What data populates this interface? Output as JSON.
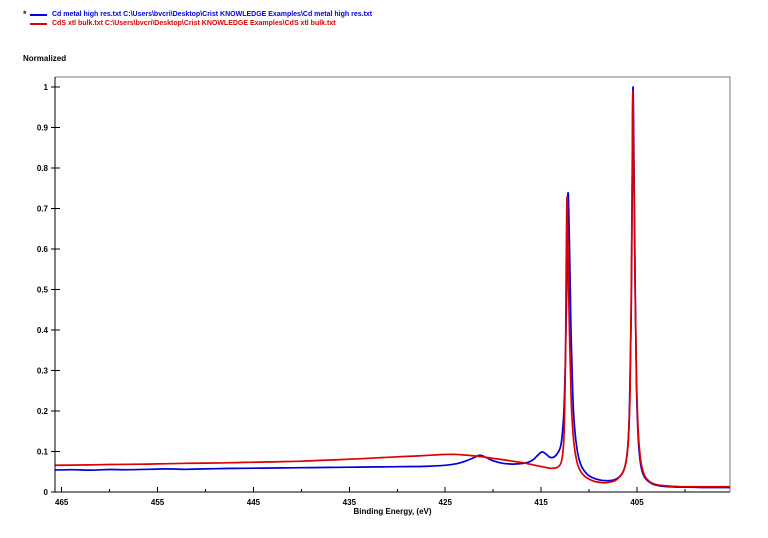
{
  "page": {
    "background": "#ffffff"
  },
  "legend": {
    "active_marker": "*",
    "series": [
      {
        "label": "Cd metal high res.txt C:\\Users\\bvcri\\Desktop\\Crist KNOWLEDGE Examples\\Cd metal high res.txt"
      },
      {
        "label": "CdS xtl bulk.txt C:\\Users\\bvcri\\Desktop\\Crist KNOWLEDGE Examples\\CdS xtl bulk.txt"
      }
    ]
  },
  "chart_data": {
    "type": "line",
    "title": "",
    "xlabel": "Binding Energy, (eV)",
    "ylabel": "Normalized",
    "frame_color": "#777777",
    "axis_color": "#000000",
    "legend_position": "top-left-above-plot",
    "grid": false,
    "x_axis": {
      "min": 395.3,
      "max": 465.7,
      "reversed": true,
      "major_ticks": [
        465,
        455,
        445,
        435,
        425,
        415,
        405
      ],
      "minor_ticks": [
        460,
        450,
        440,
        430,
        420,
        410,
        400
      ]
    },
    "y_axis": {
      "min": 0,
      "max": 1.025,
      "tick_values": [
        0,
        0.1,
        0.2,
        0.3,
        0.4,
        0.5,
        0.6,
        0.7,
        0.8,
        0.9,
        1
      ],
      "tick_labels": [
        "0",
        "0.1",
        "0.2",
        "0.3",
        "0.4",
        "0.5",
        "0.6",
        "0.7",
        "0.8",
        "0.9",
        "1"
      ]
    },
    "series": [
      {
        "id": "cd-metal-high-res",
        "name": "Cd metal high res.txt",
        "legend_label": "Cd metal high res.txt C:\\Users\\bvcri\\Desktop\\Crist KNOWLEDGE Examples\\Cd metal high res.txt",
        "color": "#0000dd",
        "points": [
          [
            466,
            0.054
          ],
          [
            464,
            0.055
          ],
          [
            462,
            0.054
          ],
          [
            460,
            0.0555
          ],
          [
            458,
            0.055
          ],
          [
            456,
            0.056
          ],
          [
            454,
            0.057
          ],
          [
            452,
            0.056
          ],
          [
            450,
            0.057
          ],
          [
            448,
            0.058
          ],
          [
            446,
            0.0585
          ],
          [
            444,
            0.059
          ],
          [
            442,
            0.0595
          ],
          [
            440,
            0.06
          ],
          [
            438,
            0.0605
          ],
          [
            436,
            0.061
          ],
          [
            434,
            0.0615
          ],
          [
            432,
            0.062
          ],
          [
            430,
            0.0625
          ],
          [
            428,
            0.063
          ],
          [
            426.5,
            0.064
          ],
          [
            425,
            0.066
          ],
          [
            423.8,
            0.07
          ],
          [
            422.8,
            0.077
          ],
          [
            422,
            0.085
          ],
          [
            421.4,
            0.091
          ],
          [
            420.8,
            0.086
          ],
          [
            420,
            0.077
          ],
          [
            419,
            0.071
          ],
          [
            418,
            0.069
          ],
          [
            417.2,
            0.07
          ],
          [
            416.4,
            0.073
          ],
          [
            415.8,
            0.08
          ],
          [
            415.3,
            0.092
          ],
          [
            414.9,
            0.099
          ],
          [
            414.5,
            0.094
          ],
          [
            414.1,
            0.086
          ],
          [
            413.7,
            0.086
          ],
          [
            413.3,
            0.095
          ],
          [
            413,
            0.11
          ],
          [
            412.8,
            0.14
          ],
          [
            412.6,
            0.21
          ],
          [
            412.45,
            0.35
          ],
          [
            412.3,
            0.55
          ],
          [
            412.2,
            0.738
          ],
          [
            412.05,
            0.62
          ],
          [
            411.9,
            0.42
          ],
          [
            411.7,
            0.24
          ],
          [
            411.5,
            0.155
          ],
          [
            411.2,
            0.098
          ],
          [
            410.9,
            0.07
          ],
          [
            410.5,
            0.052
          ],
          [
            410,
            0.04
          ],
          [
            409.4,
            0.033
          ],
          [
            408.7,
            0.029
          ],
          [
            408,
            0.028
          ],
          [
            407.4,
            0.03
          ],
          [
            406.9,
            0.036
          ],
          [
            406.5,
            0.048
          ],
          [
            406.2,
            0.068
          ],
          [
            405.95,
            0.115
          ],
          [
            405.78,
            0.21
          ],
          [
            405.62,
            0.42
          ],
          [
            405.5,
            0.73
          ],
          [
            405.42,
            1.0
          ],
          [
            405.3,
            0.78
          ],
          [
            405.18,
            0.48
          ],
          [
            405.05,
            0.26
          ],
          [
            404.9,
            0.145
          ],
          [
            404.7,
            0.082
          ],
          [
            404.5,
            0.054
          ],
          [
            404.2,
            0.036
          ],
          [
            403.8,
            0.026
          ],
          [
            403.3,
            0.019
          ],
          [
            402.6,
            0.015
          ],
          [
            401.8,
            0.013
          ],
          [
            400.8,
            0.012
          ],
          [
            399.5,
            0.012
          ],
          [
            398,
            0.011
          ],
          [
            396.5,
            0.011
          ],
          [
            395.3,
            0.011
          ]
        ]
      },
      {
        "id": "cds-xtl-bulk",
        "name": "CdS xtl bulk.txt",
        "legend_label": "CdS xtl bulk.txt C:\\Users\\bvcri\\Desktop\\Crist KNOWLEDGE Examples\\CdS xtl bulk.txt",
        "color": "#dd0000",
        "points": [
          [
            466,
            0.066
          ],
          [
            464,
            0.0665
          ],
          [
            462,
            0.067
          ],
          [
            460,
            0.068
          ],
          [
            458,
            0.0685
          ],
          [
            456,
            0.069
          ],
          [
            454,
            0.07
          ],
          [
            452,
            0.071
          ],
          [
            450,
            0.0715
          ],
          [
            448,
            0.072
          ],
          [
            446,
            0.073
          ],
          [
            444,
            0.074
          ],
          [
            442,
            0.075
          ],
          [
            440,
            0.076
          ],
          [
            438,
            0.078
          ],
          [
            436,
            0.08
          ],
          [
            434,
            0.082
          ],
          [
            432,
            0.0845
          ],
          [
            430,
            0.087
          ],
          [
            428,
            0.089
          ],
          [
            426.5,
            0.091
          ],
          [
            425.3,
            0.0925
          ],
          [
            424.2,
            0.093
          ],
          [
            423,
            0.0915
          ],
          [
            421.5,
            0.088
          ],
          [
            420,
            0.083
          ],
          [
            418.5,
            0.078
          ],
          [
            417,
            0.0725
          ],
          [
            415.8,
            0.067
          ],
          [
            414.8,
            0.062
          ],
          [
            414,
            0.0585
          ],
          [
            413.4,
            0.06
          ],
          [
            413,
            0.068
          ],
          [
            412.8,
            0.085
          ],
          [
            412.65,
            0.12
          ],
          [
            412.55,
            0.19
          ],
          [
            412.45,
            0.35
          ],
          [
            412.38,
            0.56
          ],
          [
            412.3,
            0.728
          ],
          [
            412.2,
            0.6
          ],
          [
            412.05,
            0.4
          ],
          [
            411.85,
            0.22
          ],
          [
            411.6,
            0.125
          ],
          [
            411.3,
            0.078
          ],
          [
            411,
            0.056
          ],
          [
            410.6,
            0.042
          ],
          [
            410.1,
            0.033
          ],
          [
            409.4,
            0.026
          ],
          [
            408.6,
            0.023
          ],
          [
            407.9,
            0.024
          ],
          [
            407.3,
            0.028
          ],
          [
            406.8,
            0.037
          ],
          [
            406.4,
            0.052
          ],
          [
            406.1,
            0.08
          ],
          [
            405.9,
            0.13
          ],
          [
            405.73,
            0.24
          ],
          [
            405.6,
            0.47
          ],
          [
            405.5,
            0.8
          ],
          [
            405.43,
            0.99
          ],
          [
            405.33,
            0.8
          ],
          [
            405.2,
            0.5
          ],
          [
            405.05,
            0.28
          ],
          [
            404.88,
            0.155
          ],
          [
            404.68,
            0.09
          ],
          [
            404.45,
            0.058
          ],
          [
            404.15,
            0.038
          ],
          [
            403.7,
            0.026
          ],
          [
            403.1,
            0.019
          ],
          [
            402.3,
            0.016
          ],
          [
            401.3,
            0.014
          ],
          [
            400,
            0.013
          ],
          [
            398.5,
            0.013
          ],
          [
            397,
            0.013
          ],
          [
            395.3,
            0.013
          ]
        ]
      }
    ]
  }
}
